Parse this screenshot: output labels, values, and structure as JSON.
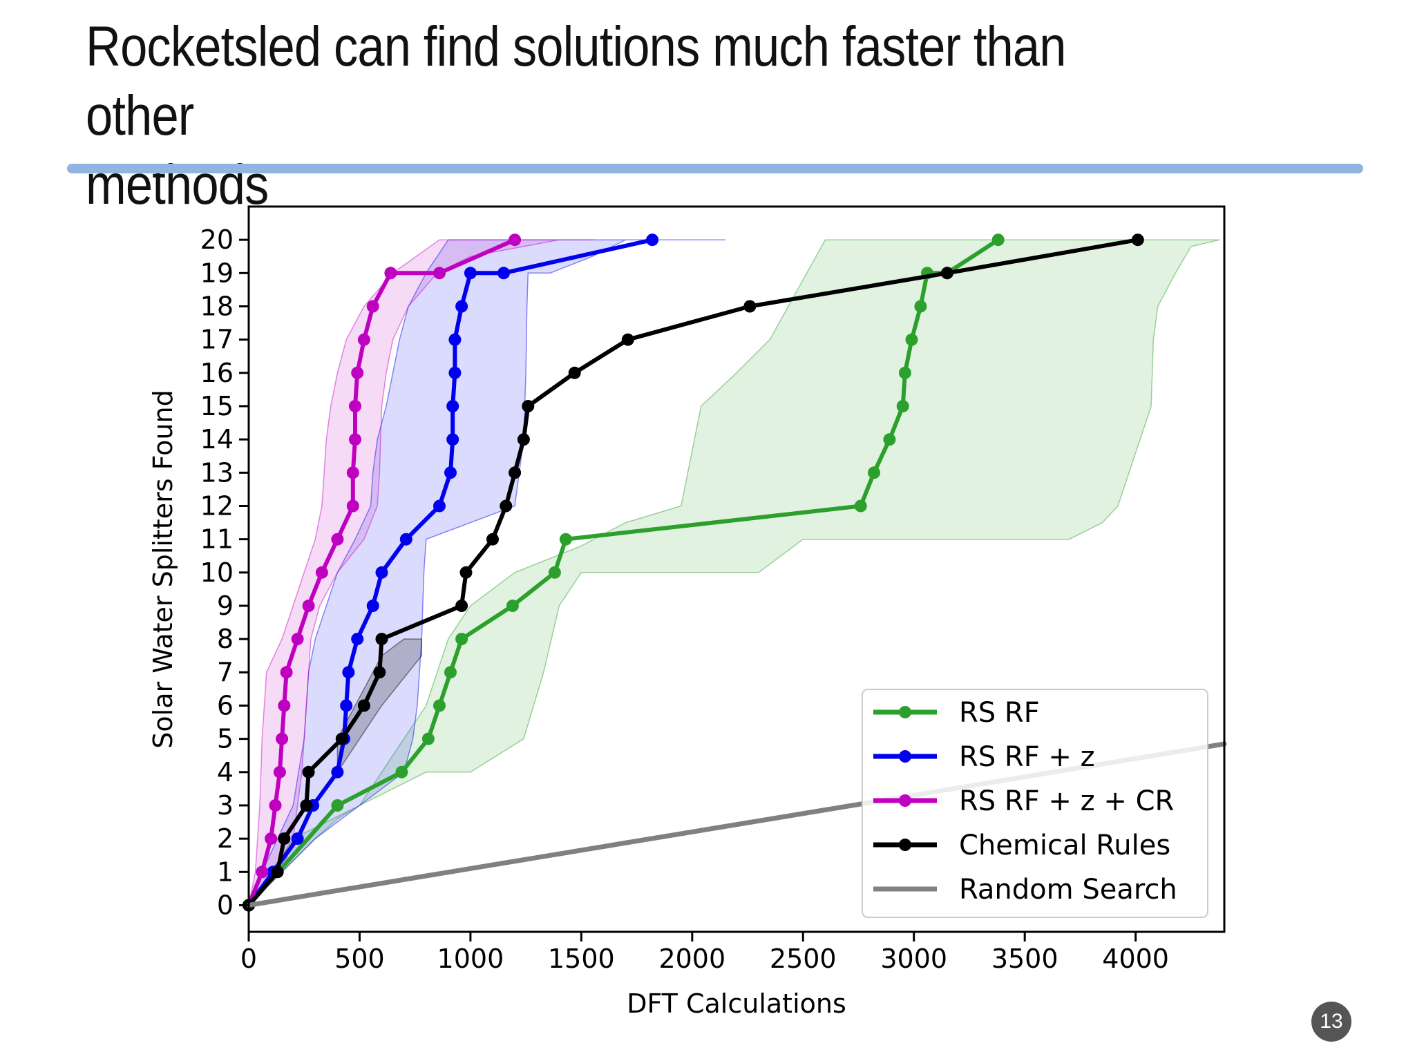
{
  "slide": {
    "title": "Rocketsled can find solutions much faster than other\nmethods",
    "rule_color": "#92b4e2",
    "page_number": "13",
    "page_badge_color": "#555555"
  },
  "chart_data": {
    "type": "line",
    "title": "",
    "xlabel": "DFT Calculations",
    "ylabel": "Solar Water Splitters Found",
    "xlim": [
      0,
      4400
    ],
    "ylim": [
      -0.8,
      21
    ],
    "xticks": [
      0,
      500,
      1000,
      1500,
      2000,
      2500,
      3000,
      3500,
      4000
    ],
    "yticks": [
      0,
      1,
      2,
      3,
      4,
      5,
      6,
      7,
      8,
      9,
      10,
      11,
      12,
      13,
      14,
      15,
      16,
      17,
      18,
      19,
      20
    ],
    "grid": false,
    "legend_position": "lower-right",
    "series": [
      {
        "name": "RS RF",
        "color": "#2ca02c",
        "markers": true,
        "x": [
          0,
          400,
          690,
          810,
          860,
          910,
          960,
          1190,
          1380,
          1430,
          2760,
          2820,
          2890,
          2950,
          2960,
          2990,
          3030,
          3060,
          3150,
          3380
        ],
        "y": [
          0,
          3,
          4,
          5,
          6,
          7,
          8,
          9,
          10,
          11,
          12,
          13,
          14,
          15,
          16,
          17,
          18,
          19,
          19,
          20
        ],
        "band_lower": [
          [
            0,
            0
          ],
          [
            150,
            1
          ],
          [
            300,
            2
          ],
          [
            400,
            2.6
          ],
          [
            500,
            3
          ],
          [
            800,
            4
          ],
          [
            1000,
            4
          ],
          [
            1240,
            5
          ],
          [
            1330,
            7
          ],
          [
            1400,
            9
          ],
          [
            1500,
            10
          ],
          [
            2300,
            10
          ],
          [
            2500,
            11
          ],
          [
            3700,
            11
          ],
          [
            3850,
            11.5
          ],
          [
            3920,
            12
          ],
          [
            4070,
            15
          ],
          [
            4080,
            17
          ],
          [
            4100,
            18
          ],
          [
            4180,
            19
          ],
          [
            4250,
            19.8
          ],
          [
            4380,
            20
          ]
        ],
        "band_upper": [
          [
            0,
            0
          ],
          [
            200,
            2
          ],
          [
            500,
            3
          ],
          [
            700,
            5
          ],
          [
            800,
            6
          ],
          [
            900,
            8
          ],
          [
            1000,
            9
          ],
          [
            1200,
            10
          ],
          [
            1500,
            10.8
          ],
          [
            1700,
            11.5
          ],
          [
            1950,
            12
          ],
          [
            2040,
            15
          ],
          [
            2200,
            16
          ],
          [
            2350,
            17
          ],
          [
            2600,
            20
          ],
          [
            4380,
            20
          ]
        ]
      },
      {
        "name": "RS RF + z",
        "color": "#0000ee",
        "markers": true,
        "x": [
          0,
          110,
          220,
          290,
          400,
          430,
          440,
          450,
          490,
          560,
          600,
          710,
          860,
          910,
          920,
          920,
          930,
          930,
          960,
          1000,
          1150,
          1820
        ],
        "y": [
          0,
          1,
          2,
          3,
          4,
          5,
          6,
          7,
          8,
          9,
          10,
          11,
          12,
          13,
          14,
          15,
          16,
          17,
          18,
          19,
          19,
          20
        ],
        "band_lower": [
          [
            0,
            0
          ],
          [
            150,
            1
          ],
          [
            300,
            2
          ],
          [
            500,
            3
          ],
          [
            700,
            4
          ],
          [
            740,
            5
          ],
          [
            760,
            6
          ],
          [
            780,
            8
          ],
          [
            790,
            10
          ],
          [
            800,
            11
          ],
          [
            1000,
            11.5
          ],
          [
            1200,
            12
          ],
          [
            1240,
            14
          ],
          [
            1250,
            16
          ],
          [
            1255,
            18
          ],
          [
            1260,
            19
          ],
          [
            1360,
            19
          ],
          [
            1550,
            19.5
          ],
          [
            1700,
            20
          ],
          [
            2000,
            20
          ],
          [
            2150,
            20
          ]
        ],
        "band_upper": [
          [
            0,
            0
          ],
          [
            60,
            1
          ],
          [
            130,
            2
          ],
          [
            200,
            3
          ],
          [
            250,
            5
          ],
          [
            270,
            7
          ],
          [
            300,
            8
          ],
          [
            350,
            9
          ],
          [
            400,
            10
          ],
          [
            480,
            11
          ],
          [
            550,
            12
          ],
          [
            560,
            13
          ],
          [
            580,
            14
          ],
          [
            620,
            15
          ],
          [
            650,
            16
          ],
          [
            680,
            17
          ],
          [
            720,
            18
          ],
          [
            800,
            19
          ],
          [
            900,
            20
          ],
          [
            2150,
            20
          ]
        ]
      },
      {
        "name": "RS RF + z + CR",
        "color": "#c000c0",
        "markers": true,
        "x": [
          0,
          60,
          100,
          120,
          140,
          150,
          160,
          170,
          220,
          270,
          330,
          400,
          470,
          470,
          480,
          480,
          490,
          520,
          560,
          640,
          860,
          1200
        ],
        "y": [
          0,
          1,
          2,
          3,
          4,
          5,
          6,
          7,
          8,
          9,
          10,
          11,
          12,
          13,
          14,
          15,
          16,
          17,
          18,
          19,
          19,
          20
        ],
        "band_lower": [
          [
            0,
            0
          ],
          [
            150,
            1
          ],
          [
            200,
            2
          ],
          [
            240,
            4
          ],
          [
            260,
            6
          ],
          [
            280,
            8
          ],
          [
            320,
            9
          ],
          [
            400,
            10
          ],
          [
            520,
            11
          ],
          [
            580,
            12
          ],
          [
            590,
            13
          ],
          [
            600,
            15
          ],
          [
            620,
            16
          ],
          [
            650,
            17
          ],
          [
            720,
            18
          ],
          [
            850,
            19
          ],
          [
            1000,
            19.5
          ],
          [
            1400,
            20
          ],
          [
            1560,
            20
          ]
        ],
        "band_upper": [
          [
            0,
            0
          ],
          [
            30,
            1
          ],
          [
            50,
            3
          ],
          [
            60,
            5
          ],
          [
            80,
            7
          ],
          [
            150,
            8
          ],
          [
            200,
            9
          ],
          [
            250,
            10
          ],
          [
            300,
            11
          ],
          [
            330,
            12
          ],
          [
            340,
            13
          ],
          [
            350,
            14
          ],
          [
            370,
            15
          ],
          [
            400,
            16
          ],
          [
            440,
            17
          ],
          [
            520,
            18
          ],
          [
            650,
            19
          ],
          [
            860,
            20
          ],
          [
            1560,
            20
          ]
        ]
      },
      {
        "name": "Chemical Rules",
        "color": "#000000",
        "markers": true,
        "x": [
          0,
          130,
          160,
          260,
          270,
          420,
          520,
          590,
          600,
          960,
          980,
          1100,
          1160,
          1200,
          1240,
          1260,
          1470,
          1710,
          2260,
          3150,
          4010
        ],
        "y": [
          0,
          1,
          2,
          3,
          4,
          5,
          6,
          7,
          8,
          9,
          10,
          11,
          12,
          13,
          14,
          15,
          16,
          17,
          18,
          19,
          20
        ],
        "band_lower": [
          [
            400,
            4
          ],
          [
            600,
            6
          ],
          [
            780,
            7.5
          ],
          [
            780,
            8
          ]
        ],
        "band_upper": [
          [
            400,
            5
          ],
          [
            600,
            7.5
          ],
          [
            700,
            8
          ],
          [
            780,
            8
          ]
        ]
      },
      {
        "name": "Random Search",
        "color": "#808080",
        "markers": false,
        "x": [
          0,
          4400
        ],
        "y": [
          0,
          4.85
        ]
      }
    ]
  }
}
